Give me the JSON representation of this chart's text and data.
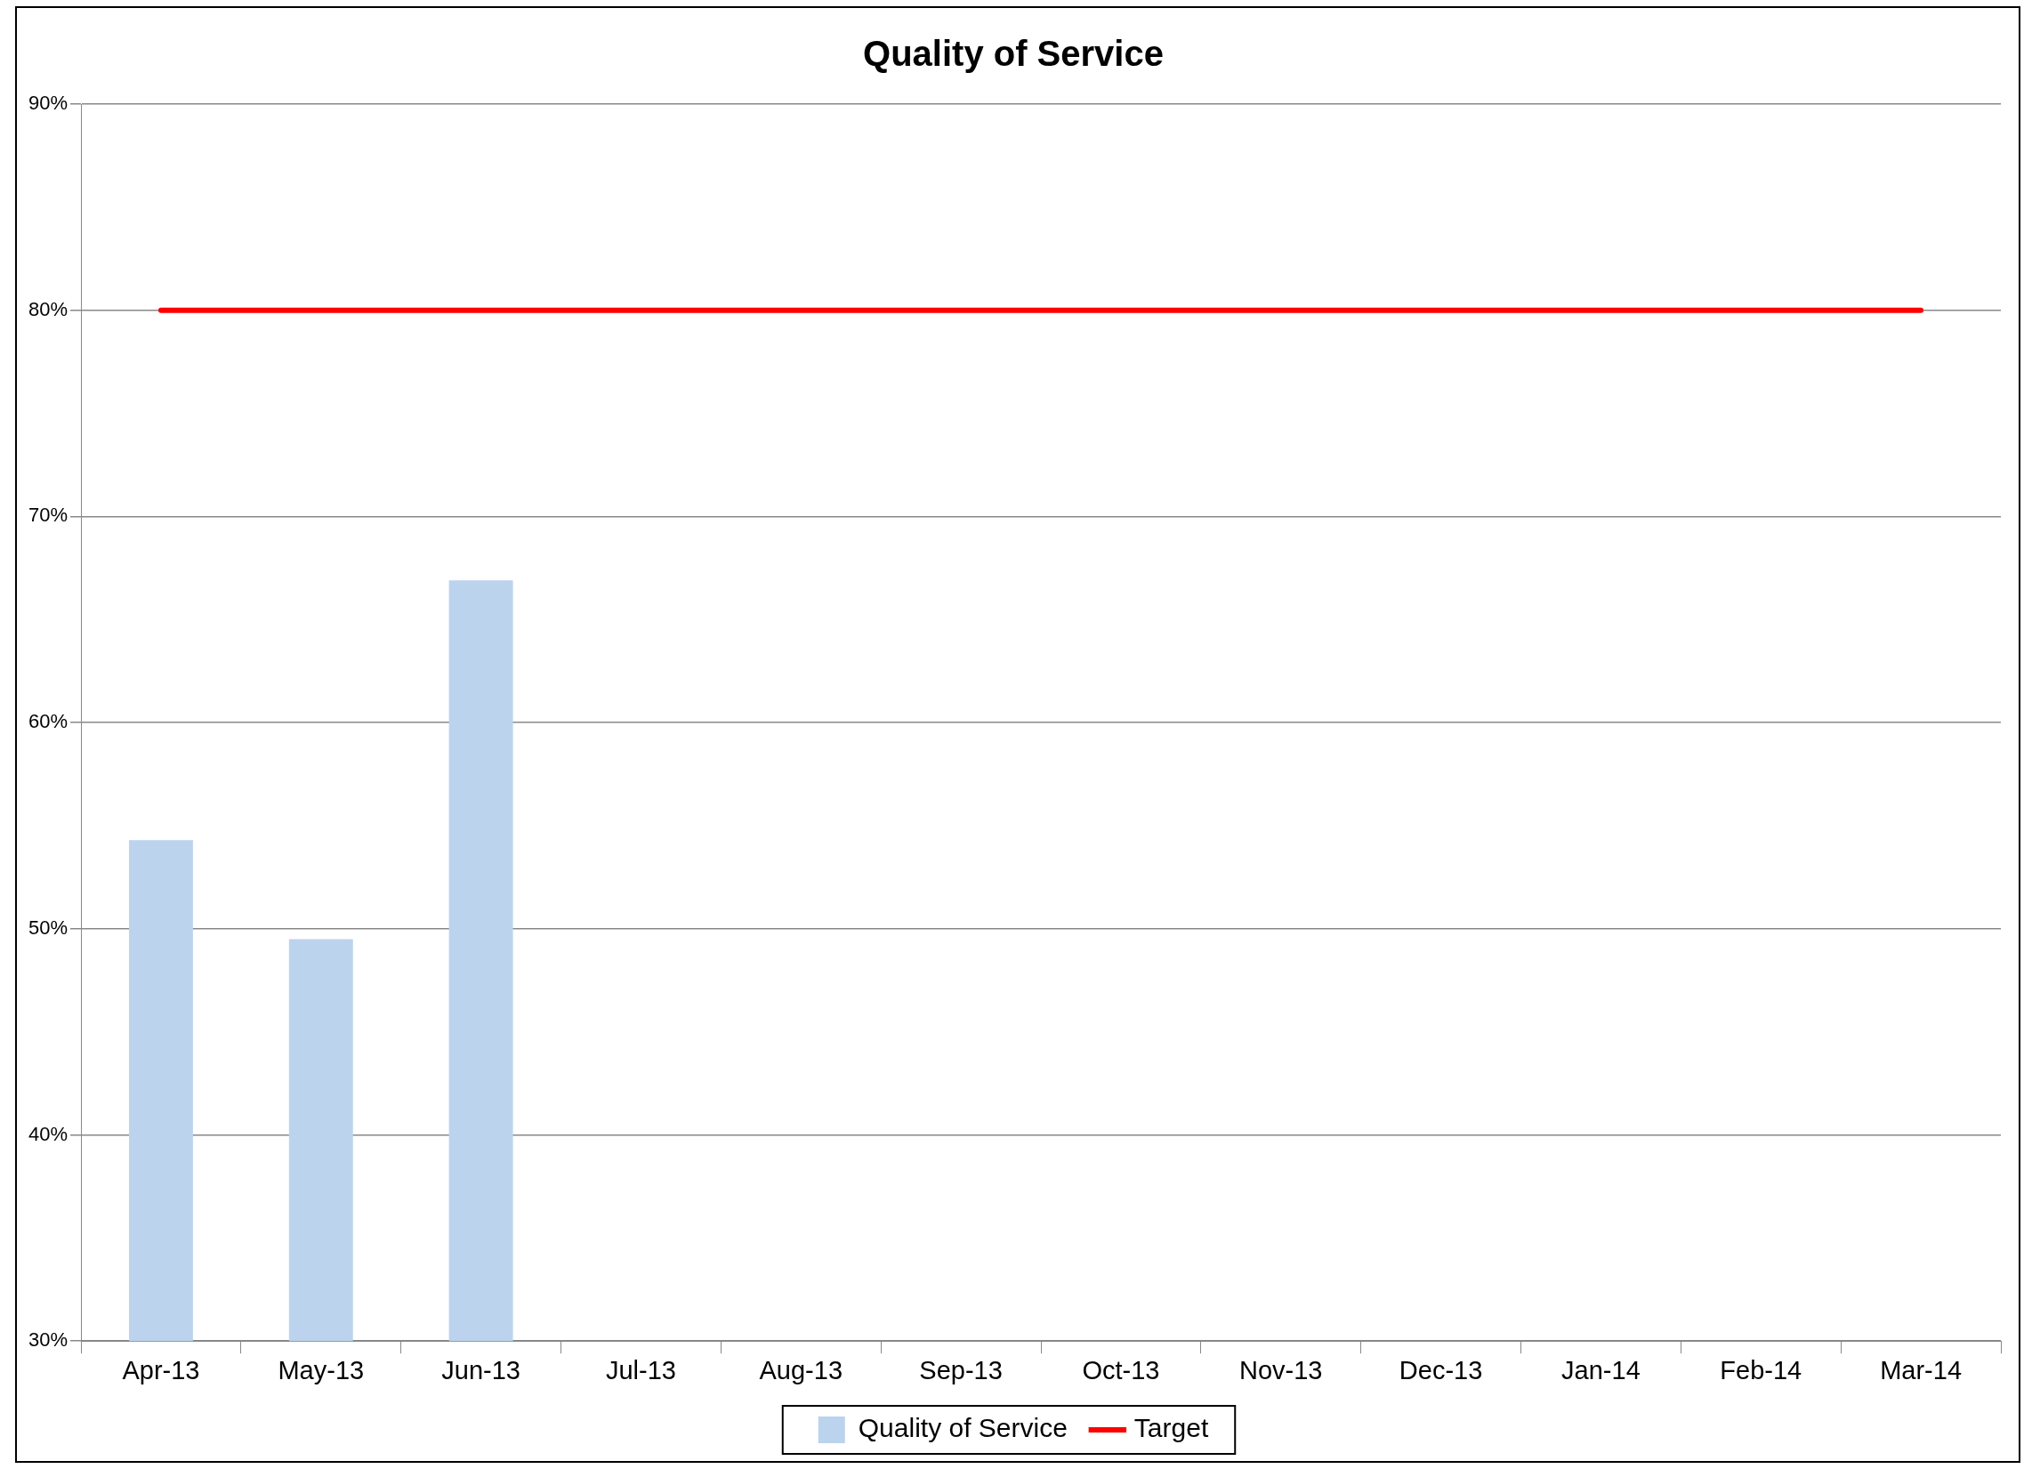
{
  "chart_data": {
    "type": "bar",
    "title": "Quality of Service",
    "categories": [
      "Apr-13",
      "May-13",
      "Jun-13",
      "Jul-13",
      "Aug-13",
      "Sep-13",
      "Oct-13",
      "Nov-13",
      "Dec-13",
      "Jan-14",
      "Feb-14",
      "Mar-14"
    ],
    "series": [
      {
        "name": "Quality of Service",
        "color": "#bcd3ee",
        "values": [
          54.3,
          49.5,
          66.9,
          null,
          null,
          null,
          null,
          null,
          null,
          null,
          null,
          null
        ]
      },
      {
        "name": "Target",
        "type": "line",
        "color": "#ff0000",
        "values": [
          80,
          80,
          80,
          80,
          80,
          80,
          80,
          80,
          80,
          80,
          80,
          80
        ]
      }
    ],
    "ylim": [
      30,
      90
    ],
    "yticks": [
      {
        "value": 30,
        "label": "30%"
      },
      {
        "value": 40,
        "label": "40%"
      },
      {
        "value": 50,
        "label": "50%"
      },
      {
        "value": 60,
        "label": "60%"
      },
      {
        "value": 70,
        "label": "70%"
      },
      {
        "value": 80,
        "label": "80%"
      },
      {
        "value": 90,
        "label": "90%"
      }
    ],
    "grid": "y",
    "legend": "bottom"
  }
}
